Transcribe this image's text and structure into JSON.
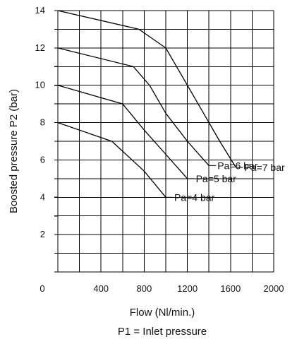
{
  "chart_data": {
    "type": "line",
    "xlabel": "Flow (Nl/min.)",
    "caption": "P1 = Inlet pressure",
    "ylabel": "Boosted pressure P2 (bar)",
    "xlim": [
      0,
      2000
    ],
    "ylim": [
      0,
      14
    ],
    "x_ticks": [
      0,
      400,
      800,
      1200,
      1600,
      2000
    ],
    "y_ticks": [
      2,
      4,
      6,
      8,
      10,
      12,
      14
    ],
    "x_tick_labels": [
      "0",
      "400",
      "800",
      "1200",
      "1600",
      "2000"
    ],
    "y_tick_labels": [
      "2",
      "4",
      "6",
      "8",
      "10",
      "12",
      "14"
    ],
    "grid": true,
    "series": [
      {
        "name": "Pa=7 bar",
        "points": [
          [
            0,
            14
          ],
          [
            750,
            13
          ],
          [
            1000,
            12
          ],
          [
            1200,
            10
          ],
          [
            1350,
            8.5
          ],
          [
            1500,
            7
          ],
          [
            1650,
            5.6
          ]
        ]
      },
      {
        "name": "Pa=6 bar",
        "points": [
          [
            0,
            12
          ],
          [
            700,
            11
          ],
          [
            850,
            10
          ],
          [
            1000,
            8.5
          ],
          [
            1200,
            7
          ],
          [
            1400,
            5.7
          ]
        ]
      },
      {
        "name": "Pa=5 bar",
        "points": [
          [
            0,
            10
          ],
          [
            600,
            9
          ],
          [
            800,
            7.6
          ],
          [
            1000,
            6.3
          ],
          [
            1200,
            5.0
          ]
        ]
      },
      {
        "name": "Pa=4 bar",
        "points": [
          [
            0,
            8
          ],
          [
            500,
            7
          ],
          [
            800,
            5.4
          ],
          [
            1000,
            4.0
          ]
        ]
      }
    ]
  }
}
